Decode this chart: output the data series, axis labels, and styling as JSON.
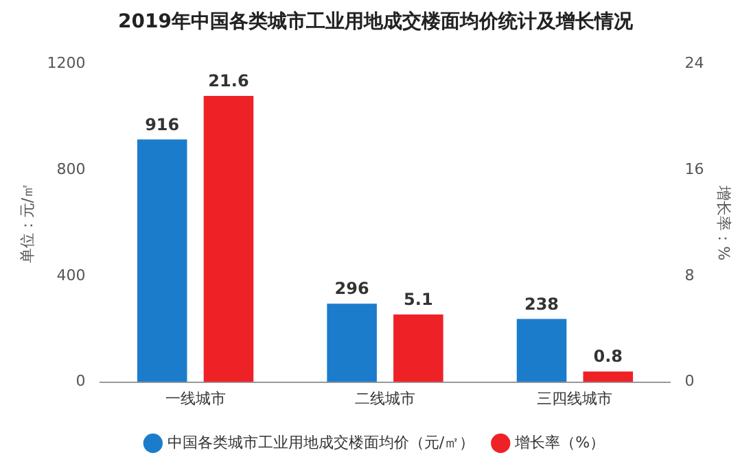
{
  "chart_data": {
    "type": "bar",
    "title": "2019年中国各类城市工业用地成交楼面均价统计及增长情况",
    "ylabel": "单位：元/㎡",
    "y2label": "增长率：%",
    "categories": [
      "一线城市",
      "二线城市",
      "三四线城市"
    ],
    "series": [
      {
        "name": "中国各类城市工业用地成交楼面均价（元/㎡）",
        "color": "#1c7ccc",
        "values": [
          916,
          296,
          238
        ]
      },
      {
        "name": "增长率（%）",
        "color": "#ee2127",
        "values": [
          21.6,
          5.1,
          0.8
        ],
        "axis": "y2"
      }
    ],
    "ylim": [
      0,
      1200
    ],
    "yticks": [
      0,
      400,
      800,
      1200
    ],
    "y2lim": [
      0,
      24
    ],
    "y2ticks": [
      0,
      8,
      16,
      24
    ],
    "data_labels": true,
    "grid": false,
    "legend": "bottom"
  }
}
